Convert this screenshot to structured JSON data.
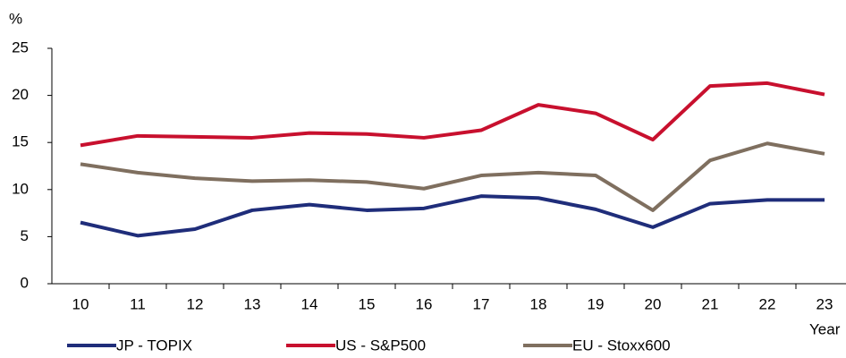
{
  "chart_data": {
    "type": "line",
    "y_unit_label": "%",
    "x_label": "Year",
    "categories": [
      "10",
      "11",
      "12",
      "13",
      "14",
      "15",
      "16",
      "17",
      "18",
      "19",
      "20",
      "21",
      "22",
      "23"
    ],
    "series": [
      {
        "name": "JP - TOPIX",
        "color": "#1f2d7a",
        "values": [
          6.5,
          5.1,
          5.8,
          7.8,
          8.4,
          7.8,
          8.0,
          9.3,
          9.1,
          7.9,
          6.0,
          8.5,
          8.9,
          8.9
        ]
      },
      {
        "name": "US - S&P500",
        "color": "#c8102e",
        "values": [
          14.7,
          15.7,
          15.6,
          15.5,
          16.0,
          15.9,
          15.5,
          16.3,
          19.0,
          18.1,
          15.3,
          21.0,
          21.3,
          20.1
        ]
      },
      {
        "name": "EU - Stoxx600",
        "color": "#7f6f5f",
        "values": [
          12.7,
          11.8,
          11.2,
          10.9,
          11.0,
          10.8,
          10.1,
          11.5,
          11.8,
          11.5,
          7.8,
          13.1,
          14.9,
          13.8
        ]
      }
    ],
    "ylim": [
      0,
      25
    ],
    "yticks": [
      0,
      5,
      10,
      15,
      20,
      25
    ],
    "grid": false,
    "legend": "bottom"
  }
}
